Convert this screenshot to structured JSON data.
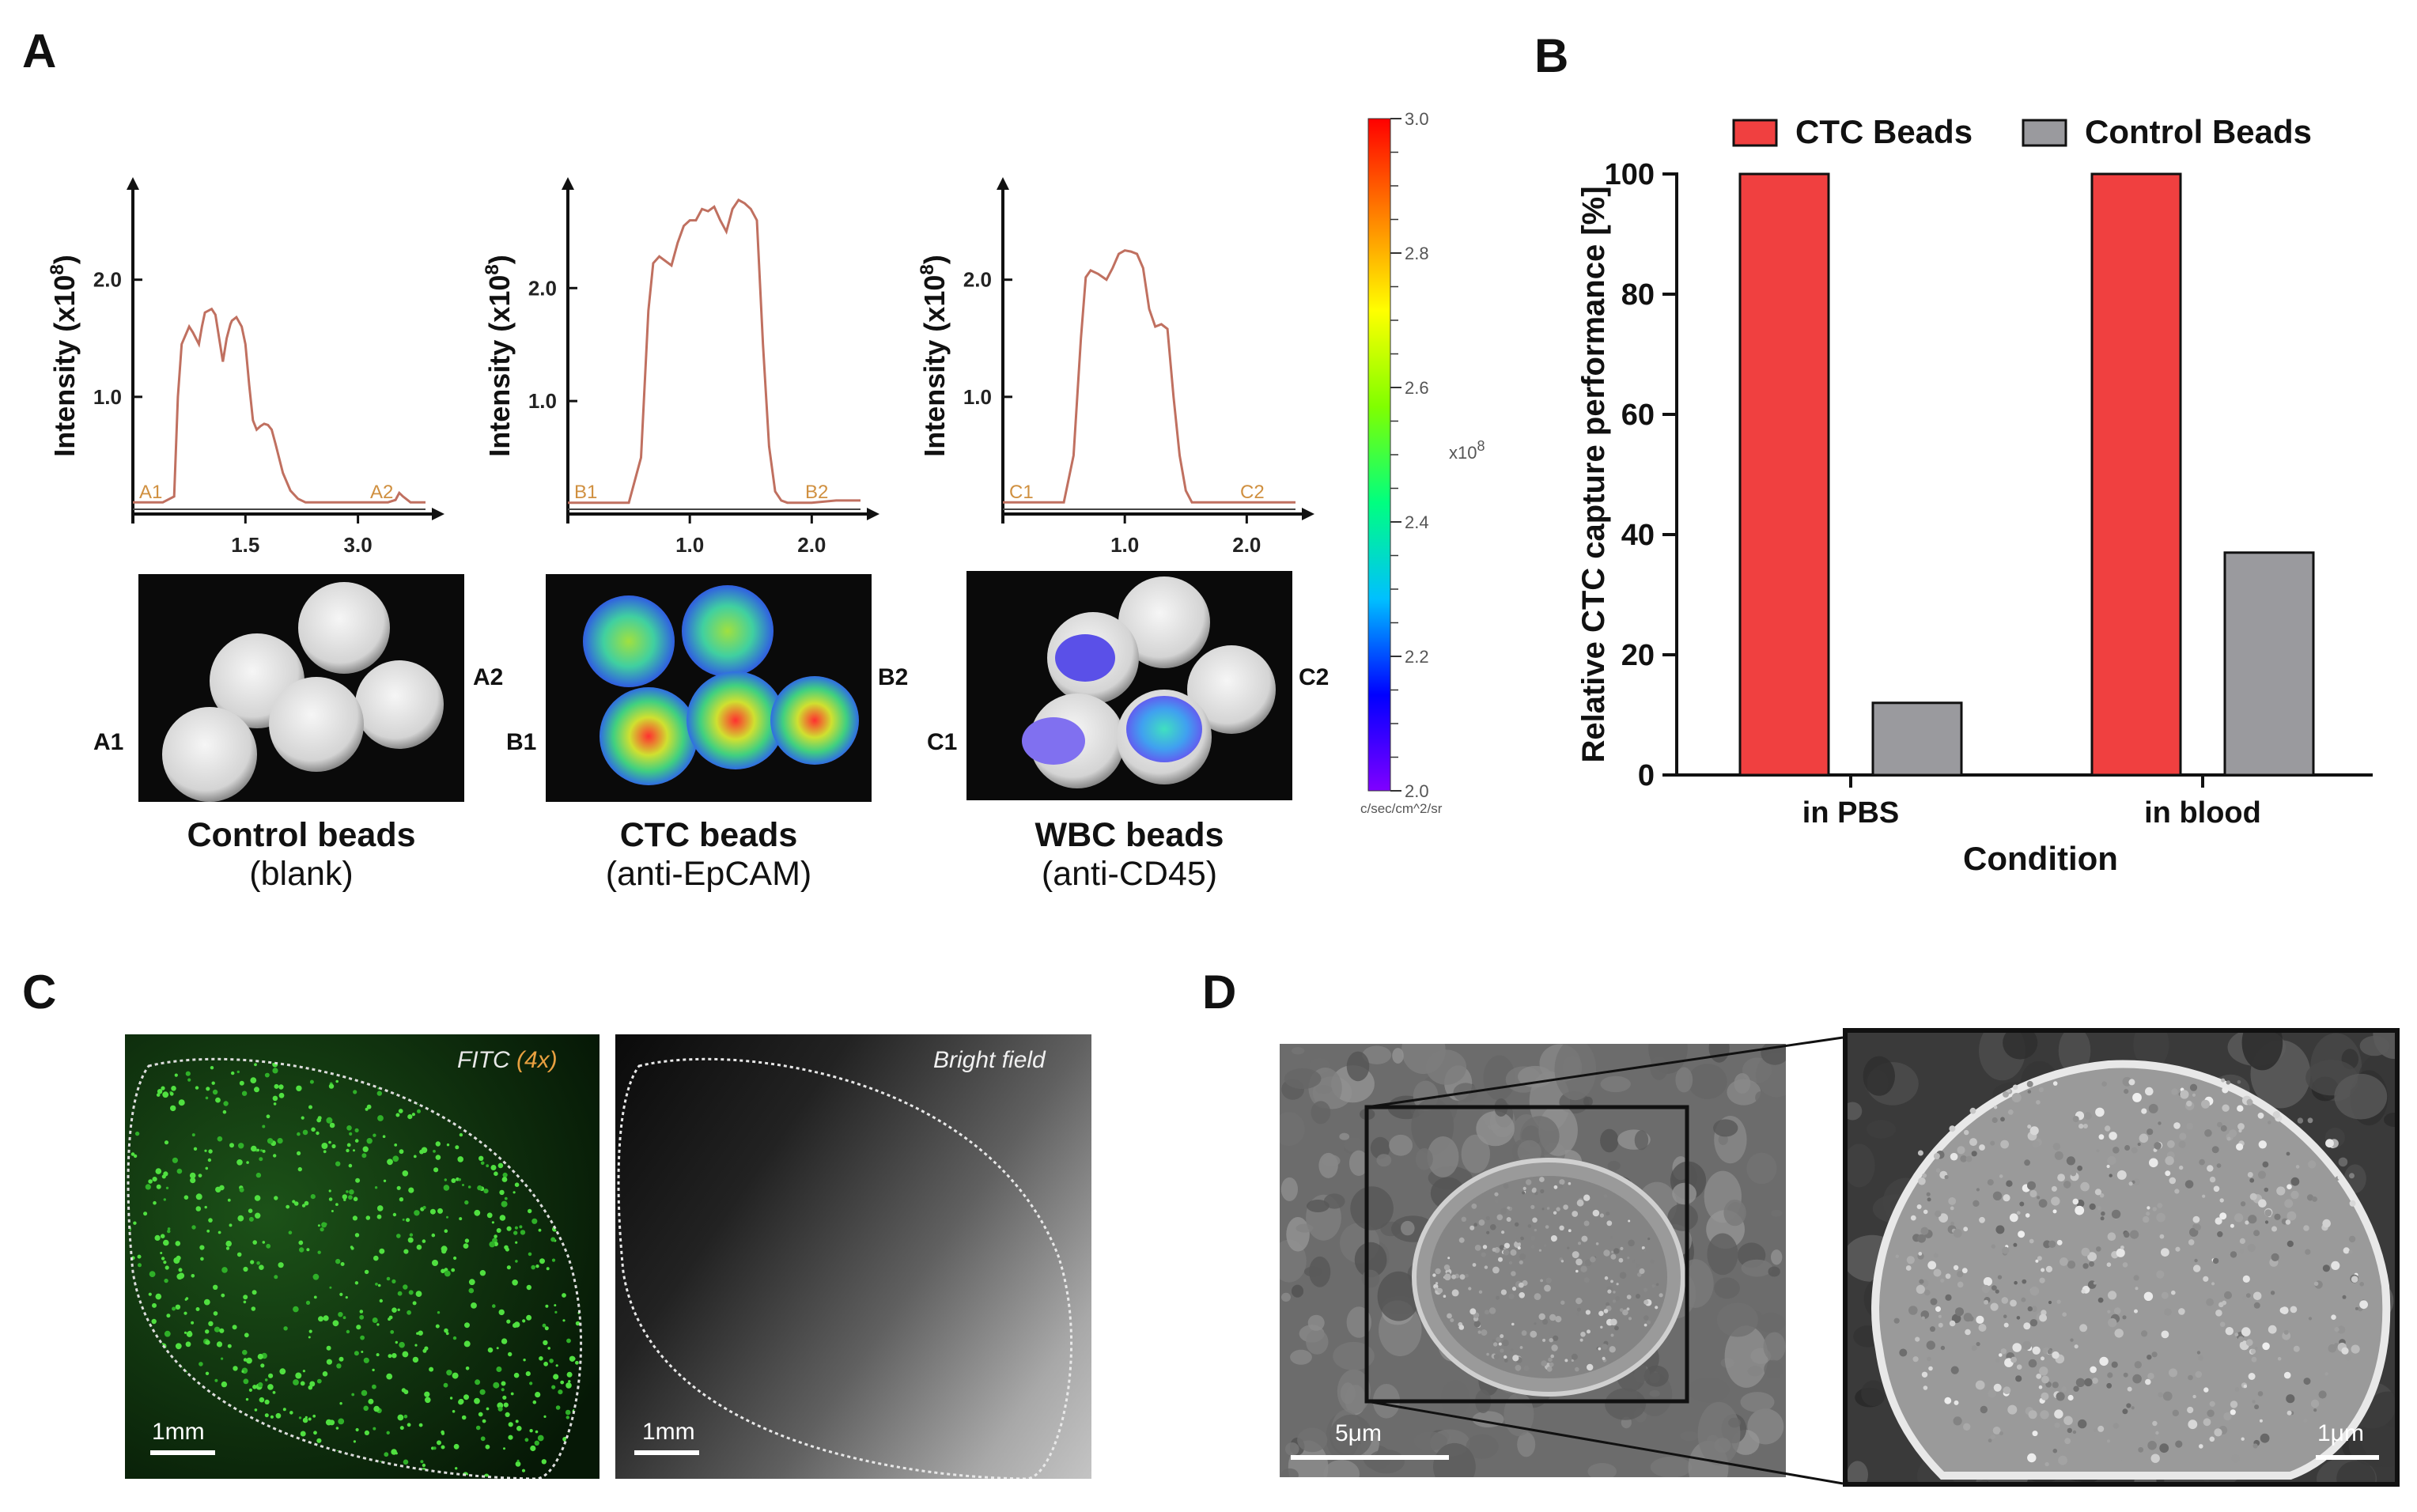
{
  "panels": {
    "A": "A",
    "B": "B",
    "C": "C",
    "D": "D"
  },
  "profiles": [
    {
      "ylabel": "Intensity (x10",
      "ylabel_sup": "8",
      "ylabel_end": ")",
      "yticks": [
        {
          "label": "1.0",
          "v": 1.0
        },
        {
          "label": "2.0",
          "v": 2.0
        }
      ],
      "xticks": [
        {
          "label": "1.5",
          "v": 1.5
        },
        {
          "label": "3.0",
          "v": 3.0
        }
      ],
      "xrange": [
        0,
        3.9
      ],
      "yrange": [
        0,
        2.7
      ],
      "start_label": "A1",
      "end_label": "A2",
      "curve_x": [
        0.0,
        0.4,
        0.55,
        0.6,
        0.65,
        0.75,
        0.8,
        0.88,
        0.92,
        0.96,
        1.05,
        1.1,
        1.15,
        1.2,
        1.25,
        1.3,
        1.32,
        1.38,
        1.45,
        1.5,
        1.55,
        1.6,
        1.65,
        1.7,
        1.75,
        1.8,
        1.85,
        1.9,
        2.0,
        2.1,
        2.2,
        2.3,
        2.4,
        2.5,
        2.6,
        2.7,
        2.8,
        2.9,
        3.0,
        3.1,
        3.2,
        3.3,
        3.4,
        3.5,
        3.55,
        3.6,
        3.7,
        3.9
      ],
      "curve_y": [
        0.1,
        0.1,
        0.15,
        1.0,
        1.45,
        1.6,
        1.55,
        1.45,
        1.6,
        1.72,
        1.75,
        1.7,
        1.5,
        1.3,
        1.5,
        1.62,
        1.65,
        1.68,
        1.6,
        1.45,
        1.1,
        0.8,
        0.72,
        0.75,
        0.77,
        0.76,
        0.72,
        0.6,
        0.35,
        0.2,
        0.13,
        0.1,
        0.1,
        0.1,
        0.1,
        0.1,
        0.1,
        0.1,
        0.1,
        0.1,
        0.1,
        0.1,
        0.1,
        0.12,
        0.18,
        0.15,
        0.1,
        0.1
      ]
    },
    {
      "ylabel": "Intensity (x10",
      "ylabel_sup": "8",
      "ylabel_end": ")",
      "yticks": [
        {
          "label": "1.0",
          "v": 1.0
        },
        {
          "label": "2.0",
          "v": 2.0
        }
      ],
      "xticks": [
        {
          "label": "1.0",
          "v": 1.0
        },
        {
          "label": "2.0",
          "v": 2.0
        }
      ],
      "xrange": [
        0,
        2.4
      ],
      "yrange": [
        0,
        2.8
      ],
      "start_label": "B1",
      "end_label": "B2",
      "curve_x": [
        0.0,
        0.5,
        0.6,
        0.66,
        0.7,
        0.75,
        0.8,
        0.85,
        0.9,
        0.95,
        1.0,
        1.05,
        1.1,
        1.15,
        1.2,
        1.25,
        1.3,
        1.35,
        1.4,
        1.45,
        1.5,
        1.55,
        1.6,
        1.65,
        1.7,
        1.75,
        1.8,
        2.0,
        2.2,
        2.4
      ],
      "curve_y": [
        0.1,
        0.1,
        0.5,
        1.8,
        2.22,
        2.28,
        2.24,
        2.2,
        2.4,
        2.55,
        2.6,
        2.6,
        2.7,
        2.68,
        2.72,
        2.6,
        2.5,
        2.7,
        2.78,
        2.75,
        2.7,
        2.6,
        1.5,
        0.6,
        0.2,
        0.12,
        0.1,
        0.1,
        0.12,
        0.12
      ]
    },
    {
      "ylabel": "Intensity (x10",
      "ylabel_sup": "8",
      "ylabel_end": ")",
      "yticks": [
        {
          "label": "1.0",
          "v": 1.0
        },
        {
          "label": "2.0",
          "v": 2.0
        }
      ],
      "xticks": [
        {
          "label": "1.0",
          "v": 1.0
        },
        {
          "label": "2.0",
          "v": 2.0
        }
      ],
      "xrange": [
        0,
        2.4
      ],
      "yrange": [
        0,
        2.7
      ],
      "start_label": "C1",
      "end_label": "C2",
      "curve_x": [
        0.0,
        0.5,
        0.58,
        0.64,
        0.68,
        0.72,
        0.78,
        0.85,
        0.9,
        0.95,
        1.0,
        1.05,
        1.1,
        1.15,
        1.2,
        1.25,
        1.3,
        1.35,
        1.4,
        1.45,
        1.5,
        1.55,
        1.6,
        1.8,
        2.0,
        2.4
      ],
      "curve_y": [
        0.1,
        0.1,
        0.5,
        1.5,
        2.02,
        2.08,
        2.05,
        2.0,
        2.1,
        2.22,
        2.25,
        2.24,
        2.22,
        2.1,
        1.75,
        1.6,
        1.62,
        1.58,
        1.0,
        0.5,
        0.2,
        0.1,
        0.1,
        0.1,
        0.1,
        0.1
      ]
    }
  ],
  "colorbar": {
    "ticks": [
      {
        "label": "3.0",
        "v": 3.0
      },
      {
        "label": "2.8",
        "v": 2.8
      },
      {
        "label": "2.6",
        "v": 2.6
      },
      {
        "label": "2.4",
        "v": 2.4
      },
      {
        "label": "2.2",
        "v": 2.2
      },
      {
        "label": "2.0",
        "v": 2.0
      }
    ],
    "range": [
      2.0,
      3.0
    ],
    "unit_label": "x10",
    "unit_sup": "8",
    "bottom_label": "c/sec/cm^2/sr",
    "colors": [
      "#8000ff",
      "#0000ff",
      "#00c0ff",
      "#00ff80",
      "#80ff00",
      "#ffff00",
      "#ff8000",
      "#ff0000"
    ]
  },
  "bead_images": [
    {
      "left_label": "A1",
      "right_label": "A2",
      "title": "Control beads",
      "subtitle": "(blank)"
    },
    {
      "left_label": "B1",
      "right_label": "B2",
      "title": "CTC beads",
      "subtitle": "(anti-EpCAM)"
    },
    {
      "left_label": "C1",
      "right_label": "C2",
      "title": "WBC beads",
      "subtitle": "(anti-CD45)"
    }
  ],
  "chart_data": {
    "type": "bar",
    "categories": [
      "in PBS",
      "in blood"
    ],
    "series": [
      {
        "name": "CTC Beads",
        "values": [
          100,
          100
        ],
        "color": "#f04040"
      },
      {
        "name": "Control Beads",
        "values": [
          12,
          37
        ],
        "color": "#9a9a9e"
      }
    ],
    "xlabel": "Condition",
    "ylabel": "Relative CTC capture performance [%]",
    "ylim": [
      0,
      100
    ],
    "yticks": [
      0,
      20,
      40,
      60,
      80,
      100
    ],
    "legend_position": "top"
  },
  "micrographs": {
    "fitc_label": "FITC ",
    "fitc_mag": "(4x)",
    "bright_label": "Bright field",
    "scale_1mm": "1mm",
    "scale_5um": "5μm",
    "scale_1um": "1μm"
  }
}
